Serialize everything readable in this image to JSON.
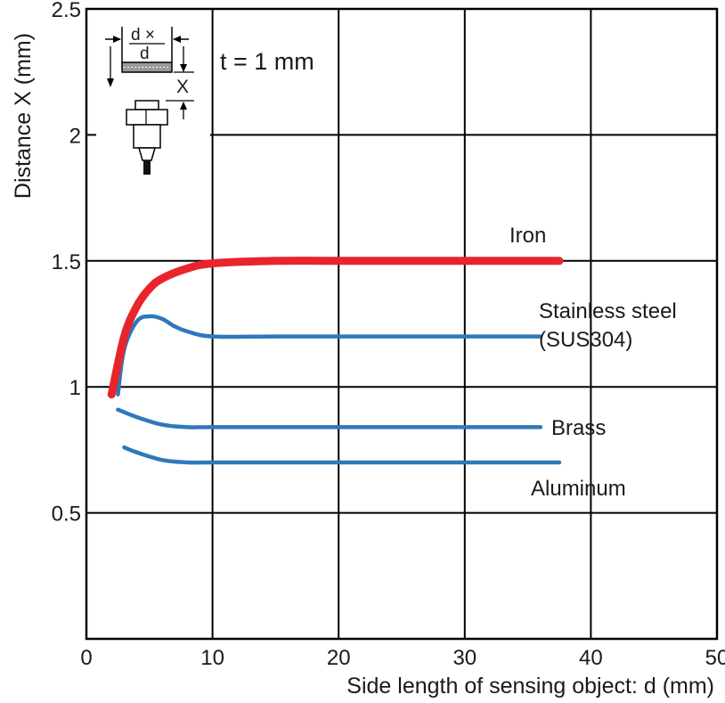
{
  "chart_data": {
    "type": "line",
    "title": "",
    "xlabel": "Side length of sensing object: d (mm)",
    "ylabel": "Distance X (mm)",
    "xlim": [
      0,
      50
    ],
    "ylim": [
      0,
      2.5
    ],
    "x_ticks": [
      "0",
      "10",
      "20",
      "30",
      "40",
      "50"
    ],
    "y_ticks": [
      "0.5",
      "1",
      "1.5",
      "2",
      "2.5"
    ],
    "grid": true,
    "legend": "none (series labeled inline at right)",
    "inset_note": "t = 1 mm",
    "inset_labels": {
      "d_times": "d ×",
      "d": "d",
      "x": "X"
    },
    "series": [
      {
        "name": "Iron",
        "color": "#e8252b",
        "points": [
          [
            2,
            0.97
          ],
          [
            3,
            1.2
          ],
          [
            4,
            1.32
          ],
          [
            5,
            1.39
          ],
          [
            6,
            1.43
          ],
          [
            8,
            1.47
          ],
          [
            10,
            1.49
          ],
          [
            15,
            1.5
          ],
          [
            20,
            1.5
          ],
          [
            30,
            1.5
          ],
          [
            37.5,
            1.5
          ]
        ]
      },
      {
        "name": "Stainless steel",
        "name_line2": "(SUS304)",
        "color": "#2f78bb",
        "points": [
          [
            2.5,
            0.97
          ],
          [
            3,
            1.15
          ],
          [
            4,
            1.26
          ],
          [
            5,
            1.28
          ],
          [
            6,
            1.27
          ],
          [
            7,
            1.24
          ],
          [
            8,
            1.22
          ],
          [
            10,
            1.2
          ],
          [
            15,
            1.2
          ],
          [
            25,
            1.2
          ],
          [
            36,
            1.2
          ]
        ]
      },
      {
        "name": "Brass",
        "color": "#2f78bb",
        "points": [
          [
            2.5,
            0.91
          ],
          [
            4,
            0.88
          ],
          [
            6,
            0.85
          ],
          [
            8,
            0.84
          ],
          [
            10,
            0.84
          ],
          [
            20,
            0.84
          ],
          [
            30,
            0.84
          ],
          [
            36,
            0.84
          ]
        ]
      },
      {
        "name": "Aluminum",
        "color": "#2f78bb",
        "points": [
          [
            3,
            0.76
          ],
          [
            4,
            0.74
          ],
          [
            6,
            0.71
          ],
          [
            8,
            0.7
          ],
          [
            10,
            0.7
          ],
          [
            20,
            0.7
          ],
          [
            30,
            0.7
          ],
          [
            37.5,
            0.7
          ]
        ]
      }
    ]
  }
}
